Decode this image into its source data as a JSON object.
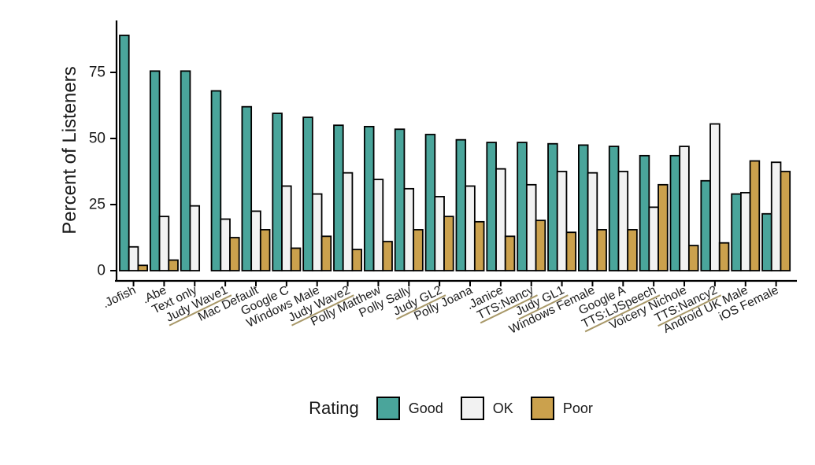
{
  "chart_data": {
    "type": "bar",
    "variant": "grouped",
    "title": "",
    "xlabel": "",
    "ylabel": "Percent of Listeners",
    "ylim": [
      0,
      92
    ],
    "yticks": [
      0,
      25,
      50,
      75
    ],
    "grid": false,
    "legend_position": "bottom-center",
    "legend_title": "Rating",
    "categories": [
      ".Jofish",
      ".Abe",
      "Text only",
      "Judy Wave1",
      "Mac Default",
      "Google C",
      "Windows Male",
      "Judy Wave2",
      "Polly Matthew",
      "Polly Sally",
      "Judy GL2",
      "Polly Joana",
      ".Janice",
      "TTS:Nancy",
      "Judy GL1",
      "Windows Female",
      "Google A",
      "TTS:LJSpeech",
      "Voicery Nichole",
      "TTS:Nancy2",
      "Android UK Male",
      "iOS Female"
    ],
    "underlined_categories": [
      "Judy Wave1",
      "Judy Wave2",
      "Judy GL2",
      "TTS:Nancy",
      "Judy GL1",
      "TTS:LJSpeech",
      "TTS:Nancy2"
    ],
    "series": [
      {
        "name": "Good",
        "color": "#4AA59B",
        "values": [
          89,
          75.5,
          75.5,
          68,
          62,
          59.5,
          58,
          55,
          54.5,
          53.5,
          51.5,
          49.5,
          48.5,
          48.5,
          48,
          47.5,
          47,
          43.5,
          43.5,
          34,
          29,
          21.5
        ]
      },
      {
        "name": "OK",
        "color": "#F2F2F2",
        "values": [
          9,
          20.5,
          24.5,
          19.5,
          22.5,
          32,
          29,
          37,
          34.5,
          31,
          28,
          32,
          38.5,
          32.5,
          37.5,
          37,
          37.5,
          24,
          47,
          55.5,
          29.5,
          41
        ]
      },
      {
        "name": "Poor",
        "color": "#CBA14D",
        "values": [
          2,
          4,
          0,
          12.5,
          15.5,
          8.5,
          13,
          8,
          11,
          15.5,
          20.5,
          18.5,
          13,
          19,
          14.5,
          15.5,
          15.5,
          32.5,
          9.5,
          10.5,
          41.5,
          37.5
        ]
      }
    ],
    "colors": {
      "bar_outline": "#000000",
      "axis": "#000000",
      "text": "#1a1a1a",
      "category_underline": "#a89868",
      "background": "#ffffff"
    }
  }
}
